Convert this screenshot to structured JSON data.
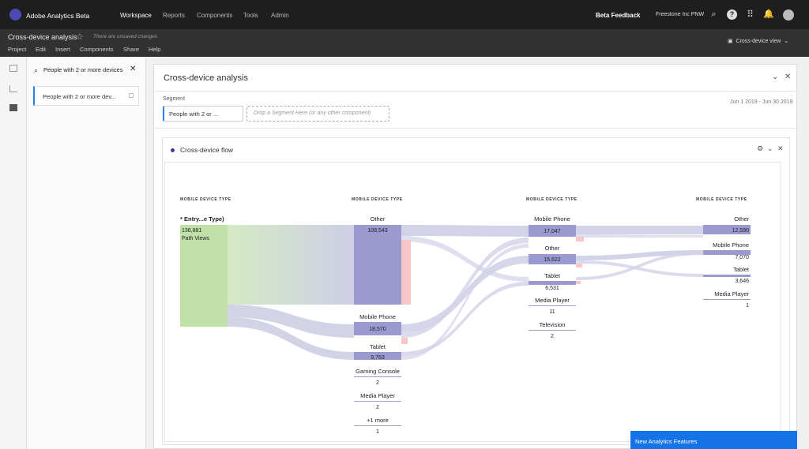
{
  "topbar": {
    "app_name": "Adobe Analytics Beta",
    "nav": [
      "Workspace",
      "Reports",
      "Components",
      "Tools",
      "Admin"
    ],
    "active_nav": "Workspace",
    "beta_feedback": "Beta Feedback",
    "org": "Freestone Inc PNW",
    "icons": [
      "search-icon",
      "help-icon",
      "apps-grid-icon",
      "notifications-bell-icon",
      "user-avatar"
    ]
  },
  "project": {
    "title": "Cross-device analysis",
    "unsaved": "There are unsaved changes",
    "menu": [
      "Project",
      "Edit",
      "Insert",
      "Components",
      "Share",
      "Help"
    ],
    "view_button": "Cross-device view"
  },
  "left_panel": {
    "title": "People with 2 or more devices",
    "segment_item": "People with 2 or more dev..."
  },
  "main_panel": {
    "title": "Cross-device analysis",
    "segment_label": "Segment",
    "segment_pill": "People with 2 or ...",
    "segment_drop": "Drop a Segment Here (or any other component)",
    "date_range": "Jun 1 2019 - Jun 30 2019"
  },
  "viz": {
    "title": "Cross-device flow",
    "columns": [
      {
        "header": "MOBILE DEVICE TYPE",
        "nodes": [
          {
            "label": "* Entry...e Type)",
            "value": "136,881",
            "sub": "Path Views"
          }
        ]
      },
      {
        "header": "MOBILE DEVICE TYPE",
        "nodes": [
          {
            "label": "Other",
            "value": "108,543"
          },
          {
            "label": "Mobile Phone",
            "value": "18,570"
          },
          {
            "label": "Tablet",
            "value": "9,763"
          },
          {
            "label": "Gaming Console",
            "value": "2"
          },
          {
            "label": "Media Player",
            "value": "2"
          },
          {
            "label": "+1 more",
            "value": "1"
          }
        ]
      },
      {
        "header": "MOBILE DEVICE TYPE",
        "nodes": [
          {
            "label": "Mobile Phone",
            "value": "17,047"
          },
          {
            "label": "Other",
            "value": "15,622"
          },
          {
            "label": "Tablet",
            "value": "6,531"
          },
          {
            "label": "Media Player",
            "value": "11"
          },
          {
            "label": "Television",
            "value": "2"
          }
        ]
      },
      {
        "header": "MOBILE DEVICE TYPE",
        "nodes": [
          {
            "label": "Other",
            "value": "12,590"
          },
          {
            "label": "Mobile Phone",
            "value": "7,070"
          },
          {
            "label": "Tablet",
            "value": "3,646"
          },
          {
            "label": "Media Player",
            "value": "1"
          }
        ]
      }
    ]
  },
  "toast": "New Analytics Features",
  "colors": {
    "entry_node": "#bfe0a6",
    "node": "#9a9ad0",
    "flow": "#c6c6e2",
    "exit": "#f7c6c6",
    "accent": "#2680eb"
  }
}
